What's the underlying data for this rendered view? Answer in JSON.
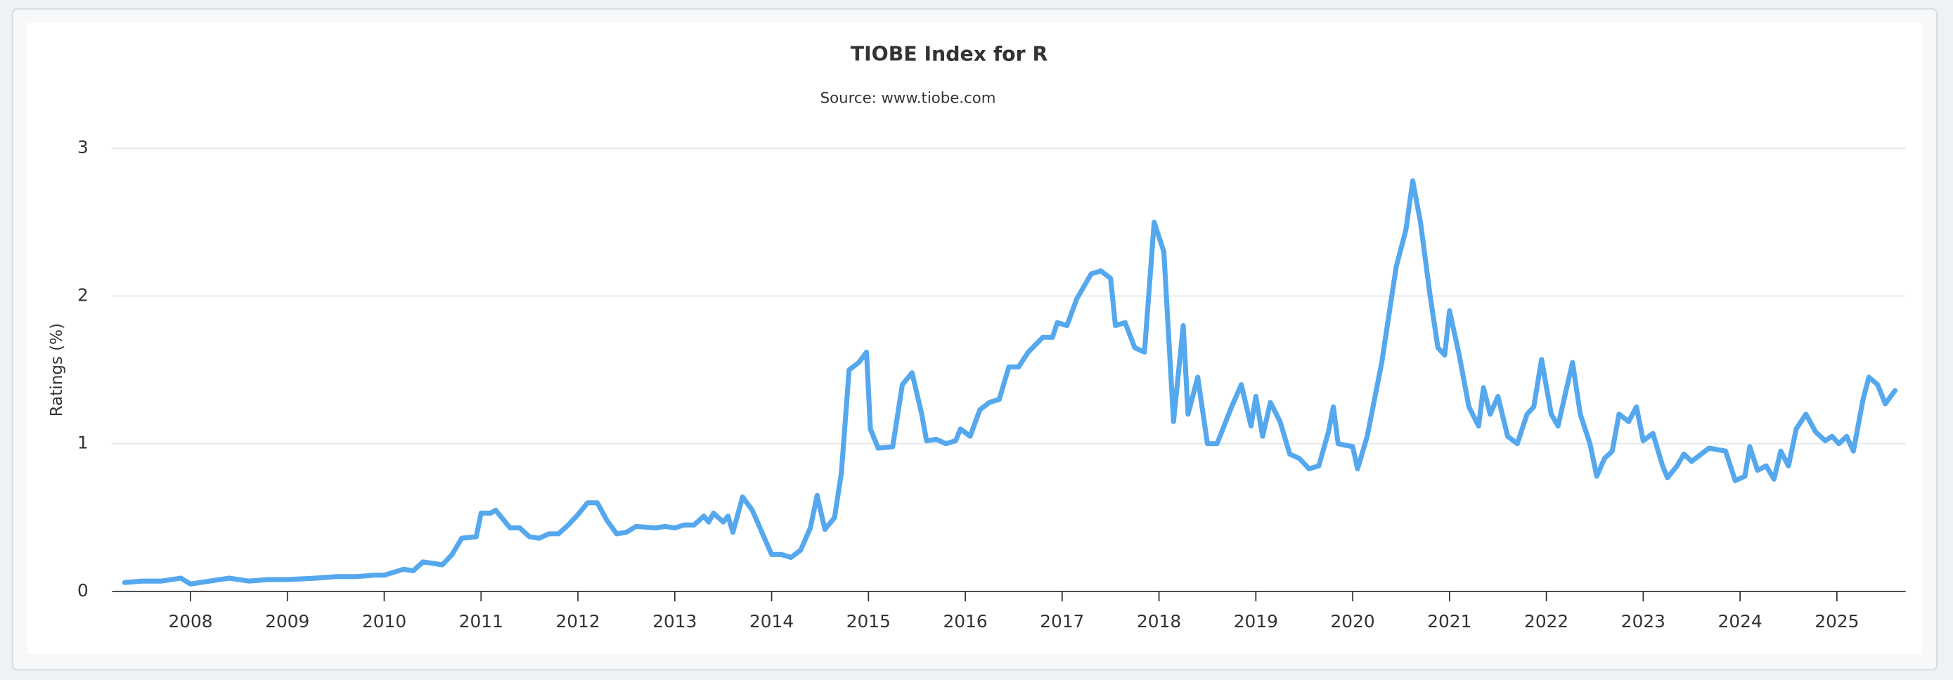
{
  "chart_data": {
    "type": "line",
    "title": "TIOBE Index for R",
    "subtitle": "Source: www.tiobe.com",
    "y_label": "Ratings (%)",
    "color": "#55a8ee",
    "grid": true,
    "xlim": [
      2007.19,
      2025.71
    ],
    "xticks": [
      2008,
      2009,
      2010,
      2011,
      2012,
      2013,
      2014,
      2015,
      2016,
      2017,
      2018,
      2019,
      2020,
      2021,
      2022,
      2023,
      2024,
      2025
    ],
    "ylim": [
      0,
      3
    ],
    "yticks": [
      0,
      1,
      2,
      3
    ],
    "x": [
      2007.32,
      2007.5,
      2007.7,
      2007.9,
      2008.0,
      2008.2,
      2008.4,
      2008.6,
      2008.8,
      2009.0,
      2009.3,
      2009.5,
      2009.7,
      2009.9,
      2010.0,
      2010.2,
      2010.3,
      2010.4,
      2010.6,
      2010.7,
      2010.8,
      2010.95,
      2011.0,
      2011.1,
      2011.15,
      2011.3,
      2011.4,
      2011.5,
      2011.6,
      2011.7,
      2011.8,
      2011.9,
      2012.0,
      2012.1,
      2012.2,
      2012.3,
      2012.4,
      2012.5,
      2012.6,
      2012.8,
      2012.9,
      2013.0,
      2013.1,
      2013.2,
      2013.3,
      2013.35,
      2013.4,
      2013.5,
      2013.55,
      2013.6,
      2013.7,
      2013.8,
      2013.9,
      2014.0,
      2014.1,
      2014.2,
      2014.3,
      2014.4,
      2014.47,
      2014.55,
      2014.65,
      2014.72,
      2014.8,
      2014.9,
      2014.98,
      2015.02,
      2015.1,
      2015.25,
      2015.35,
      2015.45,
      2015.55,
      2015.6,
      2015.7,
      2015.8,
      2015.9,
      2015.95,
      2016.05,
      2016.15,
      2016.25,
      2016.35,
      2016.45,
      2016.55,
      2016.65,
      2016.8,
      2016.9,
      2016.95,
      2017.05,
      2017.15,
      2017.3,
      2017.4,
      2017.5,
      2017.55,
      2017.65,
      2017.75,
      2017.85,
      2017.95,
      2018.05,
      2018.15,
      2018.25,
      2018.3,
      2018.4,
      2018.5,
      2018.6,
      2018.75,
      2018.85,
      2018.95,
      2019.0,
      2019.07,
      2019.15,
      2019.25,
      2019.35,
      2019.45,
      2019.55,
      2019.65,
      2019.75,
      2019.8,
      2019.85,
      2020.0,
      2020.05,
      2020.15,
      2020.3,
      2020.45,
      2020.55,
      2020.62,
      2020.7,
      2020.8,
      2020.88,
      2020.95,
      2021.0,
      2021.1,
      2021.2,
      2021.3,
      2021.35,
      2021.42,
      2021.5,
      2021.6,
      2021.7,
      2021.8,
      2021.87,
      2021.95,
      2022.05,
      2022.12,
      2022.2,
      2022.27,
      2022.35,
      2022.45,
      2022.52,
      2022.6,
      2022.68,
      2022.75,
      2022.85,
      2022.93,
      2023.0,
      2023.1,
      2023.2,
      2023.25,
      2023.35,
      2023.42,
      2023.5,
      2023.6,
      2023.68,
      2023.85,
      2023.95,
      2024.05,
      2024.1,
      2024.18,
      2024.27,
      2024.35,
      2024.42,
      2024.5,
      2024.58,
      2024.68,
      2024.78,
      2024.88,
      2024.95,
      2025.02,
      2025.1,
      2025.17,
      2025.27,
      2025.33,
      2025.42,
      2025.5,
      2025.6
    ],
    "values": [
      0.06,
      0.07,
      0.07,
      0.09,
      0.05,
      0.07,
      0.09,
      0.07,
      0.08,
      0.08,
      0.09,
      0.1,
      0.1,
      0.11,
      0.11,
      0.15,
      0.14,
      0.2,
      0.18,
      0.25,
      0.36,
      0.37,
      0.53,
      0.53,
      0.55,
      0.43,
      0.43,
      0.37,
      0.36,
      0.39,
      0.39,
      0.45,
      0.52,
      0.6,
      0.6,
      0.48,
      0.39,
      0.4,
      0.44,
      0.43,
      0.44,
      0.43,
      0.45,
      0.45,
      0.51,
      0.47,
      0.53,
      0.47,
      0.51,
      0.4,
      0.64,
      0.55,
      0.4,
      0.25,
      0.25,
      0.23,
      0.28,
      0.43,
      0.65,
      0.42,
      0.5,
      0.8,
      1.5,
      1.55,
      1.62,
      1.1,
      0.97,
      0.98,
      1.4,
      1.48,
      1.2,
      1.02,
      1.03,
      1.0,
      1.02,
      1.1,
      1.05,
      1.23,
      1.28,
      1.3,
      1.52,
      1.52,
      1.62,
      1.72,
      1.72,
      1.82,
      1.8,
      1.98,
      2.15,
      2.17,
      2.12,
      1.8,
      1.82,
      1.65,
      1.62,
      2.5,
      2.3,
      1.15,
      1.8,
      1.2,
      1.45,
      1.0,
      1.0,
      1.25,
      1.4,
      1.12,
      1.32,
      1.05,
      1.28,
      1.15,
      0.93,
      0.9,
      0.83,
      0.85,
      1.08,
      1.25,
      1.0,
      0.98,
      0.83,
      1.05,
      1.55,
      2.2,
      2.45,
      2.78,
      2.5,
      2.0,
      1.65,
      1.6,
      1.9,
      1.6,
      1.25,
      1.12,
      1.38,
      1.2,
      1.32,
      1.05,
      1.0,
      1.2,
      1.25,
      1.57,
      1.2,
      1.12,
      1.35,
      1.55,
      1.2,
      1.0,
      0.78,
      0.9,
      0.95,
      1.2,
      1.15,
      1.25,
      1.02,
      1.07,
      0.85,
      0.77,
      0.85,
      0.93,
      0.88,
      0.93,
      0.97,
      0.95,
      0.75,
      0.78,
      0.98,
      0.82,
      0.85,
      0.76,
      0.95,
      0.85,
      1.1,
      1.2,
      1.08,
      1.02,
      1.05,
      1.0,
      1.05,
      0.95,
      1.3,
      1.45,
      1.4,
      1.27,
      1.36
    ]
  }
}
